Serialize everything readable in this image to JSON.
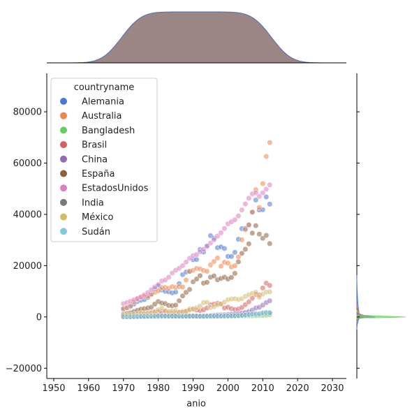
{
  "chart_data": {
    "type": "scatter",
    "title": "",
    "xlabel": "anio",
    "ylabel": "",
    "xlim": [
      1948,
      2034
    ],
    "ylim": [
      -24000,
      95000
    ],
    "xticks": [
      1950,
      1960,
      1970,
      1980,
      1990,
      2000,
      2010,
      2020,
      2030
    ],
    "xtick_labels": [
      "1950",
      "1960",
      "1970",
      "1980",
      "1990",
      "2000",
      "2010",
      "2020",
      "2030"
    ],
    "yticks": [
      -20000,
      0,
      20000,
      40000,
      60000,
      80000
    ],
    "ytick_labels": [
      "−20000",
      "0",
      "20000",
      "40000",
      "60000",
      "80000"
    ],
    "grid": false,
    "legend": {
      "title": "countryname",
      "placement": "top-left",
      "entries": [
        "Alemania",
        "Australia",
        "Bangladesh",
        "Brasil",
        "China",
        "España",
        "EstadosUnidos",
        "India",
        "México",
        "Sudán"
      ]
    },
    "marginals": {
      "x": "kde",
      "y": "kde"
    },
    "series": [
      {
        "name": "Alemania",
        "color": "#4878d0",
        "x": [
          1970,
          1971,
          1972,
          1973,
          1974,
          1975,
          1976,
          1977,
          1978,
          1979,
          1980,
          1981,
          1982,
          1983,
          1984,
          1985,
          1986,
          1987,
          1988,
          1989,
          1990,
          1991,
          1992,
          1993,
          1994,
          1995,
          1996,
          1997,
          1998,
          1999,
          2000,
          2001,
          2002,
          2003,
          2004,
          2005,
          2006,
          2007,
          2008,
          2009,
          2010,
          2011,
          2012
        ],
        "y": [
          3000,
          3500,
          4000,
          5000,
          6000,
          6500,
          6800,
          7600,
          9000,
          11000,
          12100,
          10500,
          10000,
          9800,
          9400,
          9700,
          13000,
          16500,
          17500,
          17700,
          22300,
          22400,
          26300,
          25300,
          27500,
          31700,
          30700,
          27000,
          27300,
          26700,
          23600,
          23600,
          25200,
          30300,
          34400,
          34500,
          35900,
          40800,
          45600,
          41700,
          41800,
          46800,
          44000
        ]
      },
      {
        "name": "Australia",
        "color": "#ee854a",
        "x": [
          1970,
          1971,
          1972,
          1973,
          1974,
          1975,
          1976,
          1977,
          1978,
          1979,
          1980,
          1981,
          1982,
          1983,
          1984,
          1985,
          1986,
          1987,
          1988,
          1989,
          1990,
          1991,
          1992,
          1993,
          1994,
          1995,
          1996,
          1997,
          1998,
          1999,
          2000,
          2001,
          2002,
          2003,
          2004,
          2005,
          2006,
          2007,
          2008,
          2009,
          2010,
          2011,
          2012
        ],
        "y": [
          3300,
          3600,
          4300,
          5900,
          6900,
          7600,
          8000,
          8100,
          8800,
          9600,
          10200,
          11500,
          11500,
          11200,
          11800,
          11500,
          11800,
          11700,
          14400,
          17800,
          18200,
          18900,
          18700,
          18100,
          17800,
          20300,
          21600,
          23000,
          19800,
          21300,
          21000,
          19500,
          20000,
          23400,
          30100,
          34000,
          35900,
          40900,
          49600,
          42700,
          52000,
          62600,
          68000
        ]
      },
      {
        "name": "Bangladesh",
        "color": "#6acc64",
        "x": [
          1970,
          1971,
          1972,
          1973,
          1974,
          1975,
          1976,
          1977,
          1978,
          1979,
          1980,
          1981,
          1982,
          1983,
          1984,
          1985,
          1986,
          1987,
          1988,
          1989,
          1990,
          1991,
          1992,
          1993,
          1994,
          1995,
          1996,
          1997,
          1998,
          1999,
          2000,
          2001,
          2002,
          2003,
          2004,
          2005,
          2006,
          2007,
          2008,
          2009,
          2010,
          2011,
          2012
        ],
        "y": [
          130,
          140,
          100,
          120,
          180,
          260,
          150,
          140,
          170,
          200,
          220,
          230,
          210,
          190,
          200,
          230,
          230,
          250,
          260,
          270,
          290,
          280,
          280,
          280,
          290,
          310,
          310,
          320,
          330,
          340,
          360,
          360,
          360,
          390,
          410,
          430,
          440,
          470,
          530,
          590,
          650,
          760,
          850
        ]
      },
      {
        "name": "Brasil",
        "color": "#d65f5f",
        "x": [
          1970,
          1971,
          1972,
          1973,
          1974,
          1975,
          1976,
          1977,
          1978,
          1979,
          1980,
          1981,
          1982,
          1983,
          1984,
          1985,
          1986,
          1987,
          1988,
          1989,
          1990,
          1991,
          1992,
          1993,
          1994,
          1995,
          1996,
          1997,
          1998,
          1999,
          2000,
          2001,
          2002,
          2003,
          2004,
          2005,
          2006,
          2007,
          2008,
          2009,
          2010,
          2011,
          2012
        ],
        "y": [
          450,
          500,
          600,
          800,
          1000,
          1200,
          1400,
          1600,
          1800,
          2000,
          2000,
          2100,
          2200,
          1600,
          1600,
          1600,
          1900,
          2100,
          2200,
          3000,
          3000,
          2700,
          2500,
          2800,
          3500,
          4800,
          5000,
          5300,
          5100,
          3500,
          3800,
          3200,
          2900,
          3100,
          3700,
          4800,
          5900,
          7300,
          8800,
          8600,
          11300,
          13200,
          12300
        ]
      },
      {
        "name": "China",
        "color": "#956cb4",
        "x": [
          1970,
          1971,
          1972,
          1973,
          1974,
          1975,
          1976,
          1977,
          1978,
          1979,
          1980,
          1981,
          1982,
          1983,
          1984,
          1985,
          1986,
          1987,
          1988,
          1989,
          1990,
          1991,
          1992,
          1993,
          1994,
          1995,
          1996,
          1997,
          1998,
          1999,
          2000,
          2001,
          2002,
          2003,
          2004,
          2005,
          2006,
          2007,
          2008,
          2009,
          2010,
          2011,
          2012
        ],
        "y": [
          110,
          120,
          130,
          160,
          160,
          180,
          160,
          190,
          160,
          180,
          200,
          200,
          200,
          210,
          250,
          290,
          280,
          250,
          280,
          310,
          320,
          330,
          370,
          380,
          470,
          610,
          710,
          780,
          830,
          870,
          960,
          1050,
          1150,
          1290,
          1510,
          1750,
          2100,
          2700,
          3500,
          3800,
          4600,
          5600,
          6300
        ]
      },
      {
        "name": "España",
        "color": "#8c613c",
        "x": [
          1970,
          1971,
          1972,
          1973,
          1974,
          1975,
          1976,
          1977,
          1978,
          1979,
          1980,
          1981,
          1982,
          1983,
          1984,
          1985,
          1986,
          1987,
          1988,
          1989,
          1990,
          1991,
          1992,
          1993,
          1994,
          1995,
          1996,
          1997,
          1998,
          1999,
          2000,
          2001,
          2002,
          2003,
          2004,
          2005,
          2006,
          2007,
          2008,
          2009,
          2010,
          2011,
          2012
        ],
        "y": [
          1100,
          1300,
          1600,
          2100,
          2600,
          3000,
          3200,
          3500,
          3800,
          5000,
          6000,
          5400,
          5200,
          4500,
          4400,
          4600,
          6300,
          8200,
          9600,
          10700,
          13700,
          14800,
          16100,
          13200,
          13500,
          15500,
          16000,
          14500,
          15000,
          15500,
          14800,
          15400,
          17000,
          21500,
          24800,
          26400,
          28500,
          32700,
          35600,
          32300,
          30700,
          31800,
          28600
        ]
      },
      {
        "name": "EstadosUnidos",
        "color": "#dc7ec0",
        "x": [
          1970,
          1971,
          1972,
          1973,
          1974,
          1975,
          1976,
          1977,
          1978,
          1979,
          1980,
          1981,
          1982,
          1983,
          1984,
          1985,
          1986,
          1987,
          1988,
          1989,
          1990,
          1991,
          1992,
          1993,
          1994,
          1995,
          1996,
          1997,
          1998,
          1999,
          2000,
          2001,
          2002,
          2003,
          2004,
          2005,
          2006,
          2007,
          2008,
          2009,
          2010,
          2011,
          2012
        ],
        "y": [
          5200,
          5600,
          6100,
          6700,
          7200,
          7800,
          8600,
          9500,
          10600,
          11700,
          12600,
          14000,
          14400,
          15500,
          17100,
          18200,
          19000,
          20000,
          21400,
          22900,
          23900,
          24300,
          25400,
          26400,
          27700,
          28800,
          30100,
          31500,
          32800,
          34500,
          36300,
          37100,
          37900,
          39400,
          41700,
          44100,
          46300,
          48000,
          48400,
          47000,
          48400,
          49800,
          51500
        ]
      },
      {
        "name": "India",
        "color": "#797979",
        "x": [
          1970,
          1971,
          1972,
          1973,
          1974,
          1975,
          1976,
          1977,
          1978,
          1979,
          1980,
          1981,
          1982,
          1983,
          1984,
          1985,
          1986,
          1987,
          1988,
          1989,
          1990,
          1991,
          1992,
          1993,
          1994,
          1995,
          1996,
          1997,
          1998,
          1999,
          2000,
          2001,
          2002,
          2003,
          2004,
          2005,
          2006,
          2007,
          2008,
          2009,
          2010,
          2011,
          2012
        ],
        "y": [
          110,
          120,
          120,
          140,
          160,
          160,
          160,
          180,
          200,
          220,
          270,
          270,
          280,
          290,
          280,
          300,
          310,
          340,
          360,
          350,
          370,
          300,
          320,
          300,
          350,
          370,
          400,
          410,
          410,
          440,
          450,
          460,
          480,
          550,
          630,
          710,
          800,
          1020,
          1000,
          1090,
          1350,
          1450,
          1450
        ]
      },
      {
        "name": "México",
        "color": "#d5bb67",
        "x": [
          1970,
          1971,
          1972,
          1973,
          1974,
          1975,
          1976,
          1977,
          1978,
          1979,
          1980,
          1981,
          1982,
          1983,
          1984,
          1985,
          1986,
          1987,
          1988,
          1989,
          1990,
          1991,
          1992,
          1993,
          1994,
          1995,
          1996,
          1997,
          1998,
          1999,
          2000,
          2001,
          2002,
          2003,
          2004,
          2005,
          2006,
          2007,
          2008,
          2009,
          2010,
          2011,
          2012
        ],
        "y": [
          700,
          750,
          850,
          1000,
          1200,
          1500,
          1400,
          1300,
          1600,
          2000,
          2800,
          3500,
          2400,
          2100,
          2400,
          2500,
          1800,
          1900,
          2200,
          2700,
          3100,
          3600,
          4200,
          5600,
          5700,
          3700,
          4000,
          4700,
          5100,
          5800,
          6700,
          7000,
          7100,
          6800,
          7100,
          8000,
          8700,
          9200,
          9600,
          7700,
          8900,
          9700,
          9800
        ]
      },
      {
        "name": "Sudán",
        "color": "#82c6e2",
        "x": [
          1970,
          1971,
          1972,
          1973,
          1974,
          1975,
          1976,
          1977,
          1978,
          1979,
          1980,
          1981,
          1982,
          1983,
          1984,
          1985,
          1986,
          1987,
          1988,
          1989,
          1990,
          1991,
          1992,
          1993,
          1994,
          1995,
          1996,
          1997,
          1998,
          1999,
          2000,
          2001,
          2002,
          2003,
          2004,
          2005,
          2006,
          2007,
          2008,
          2009,
          2010,
          2011,
          2012
        ],
        "y": [
          150,
          160,
          170,
          200,
          250,
          300,
          320,
          350,
          380,
          400,
          450,
          430,
          400,
          380,
          360,
          350,
          340,
          330,
          320,
          310,
          320,
          330,
          250,
          280,
          300,
          310,
          320,
          350,
          340,
          350,
          380,
          420,
          460,
          520,
          620,
          780,
          950,
          1150,
          1300,
          1250,
          1600,
          1800,
          1700
        ]
      }
    ]
  }
}
